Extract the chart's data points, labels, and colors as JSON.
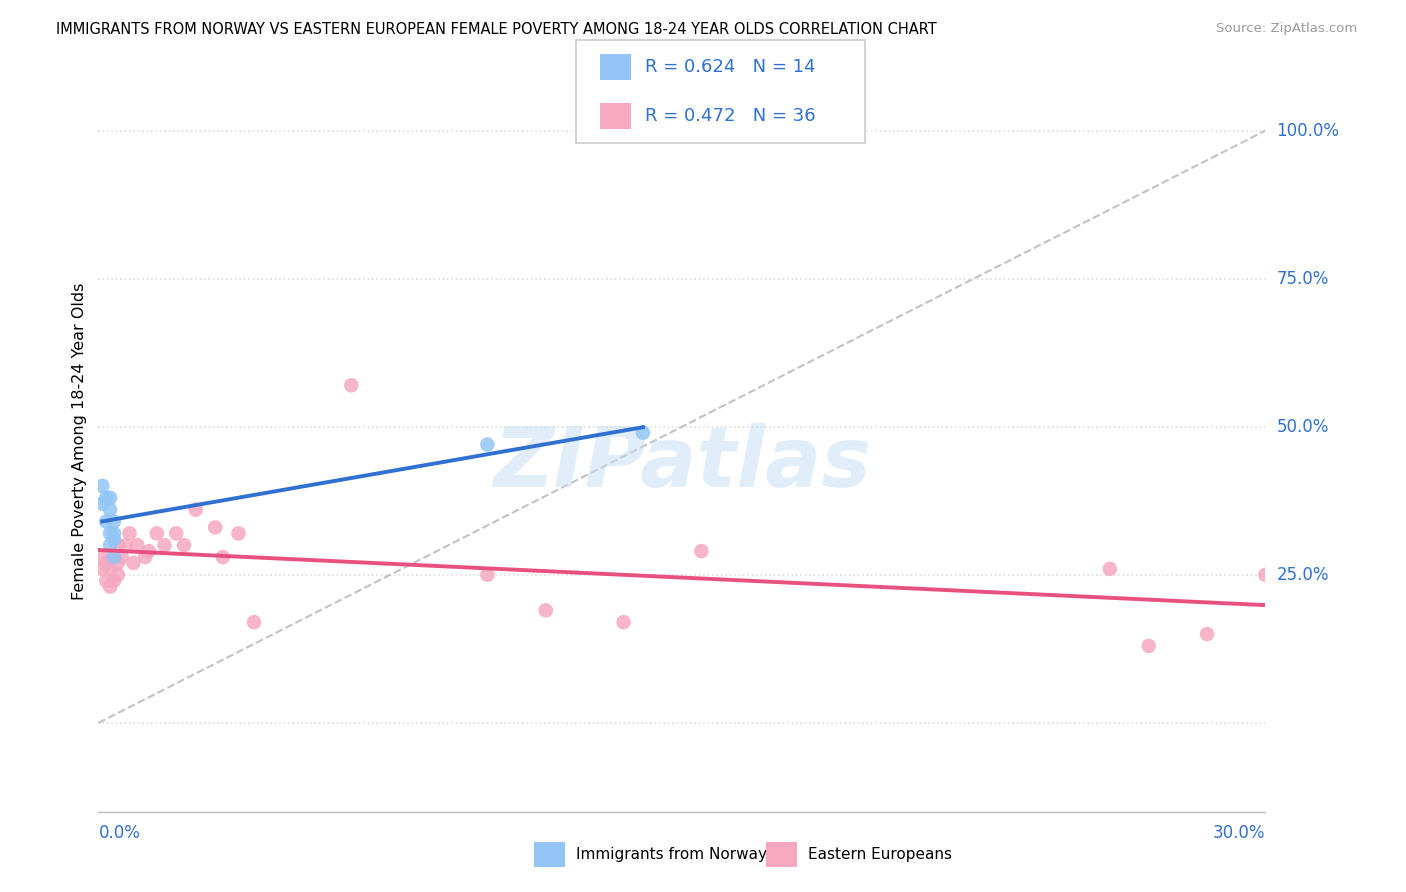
{
  "title": "IMMIGRANTS FROM NORWAY VS EASTERN EUROPEAN FEMALE POVERTY AMONG 18-24 YEAR OLDS CORRELATION CHART",
  "source": "Source: ZipAtlas.com",
  "ylabel": "Female Poverty Among 18-24 Year Olds",
  "xmin": 0.0,
  "xmax": 0.3,
  "ymin": -0.15,
  "ymax": 1.1,
  "norway_color": "#92c5f5",
  "eastern_color": "#f5a8c0",
  "norway_line_color": "#3070d0",
  "eastern_line_color": "#e85080",
  "diagonal_color": "#b8b8b8",
  "legend_norway_R": "R = 0.624",
  "legend_norway_N": "N = 14",
  "legend_eastern_R": "R = 0.472",
  "legend_eastern_N": "N = 36",
  "legend_label_norway": "Immigrants from Norway",
  "legend_label_eastern": "Eastern Europeans",
  "watermark": "ZIPatlas",
  "norway_x": [
    0.001,
    0.001,
    0.002,
    0.002,
    0.003,
    0.003,
    0.003,
    0.003,
    0.004,
    0.004,
    0.004,
    0.004,
    0.1,
    0.14
  ],
  "norway_y": [
    0.37,
    0.4,
    0.34,
    0.38,
    0.3,
    0.32,
    0.36,
    0.38,
    0.32,
    0.34,
    0.28,
    0.31,
    0.47,
    0.49
  ],
  "eastern_x": [
    0.001,
    0.001,
    0.002,
    0.002,
    0.003,
    0.003,
    0.004,
    0.004,
    0.005,
    0.005,
    0.005,
    0.006,
    0.007,
    0.008,
    0.009,
    0.01,
    0.012,
    0.013,
    0.015,
    0.017,
    0.02,
    0.022,
    0.025,
    0.03,
    0.032,
    0.036,
    0.04,
    0.065,
    0.1,
    0.115,
    0.135,
    0.155,
    0.26,
    0.27,
    0.285,
    0.3
  ],
  "eastern_y": [
    0.26,
    0.28,
    0.24,
    0.27,
    0.23,
    0.26,
    0.24,
    0.28,
    0.25,
    0.27,
    0.3,
    0.28,
    0.3,
    0.32,
    0.27,
    0.3,
    0.28,
    0.29,
    0.32,
    0.3,
    0.32,
    0.3,
    0.36,
    0.33,
    0.28,
    0.32,
    0.17,
    0.57,
    0.25,
    0.19,
    0.17,
    0.29,
    0.26,
    0.13,
    0.15,
    0.25
  ],
  "ytick_vals": [
    0.0,
    0.25,
    0.5,
    0.75,
    1.0
  ],
  "ytick_labels": [
    "",
    "25.0%",
    "50.0%",
    "75.0%",
    "100.0%"
  ],
  "grid_color": "#dddddd",
  "spine_color": "#bbbbbb"
}
